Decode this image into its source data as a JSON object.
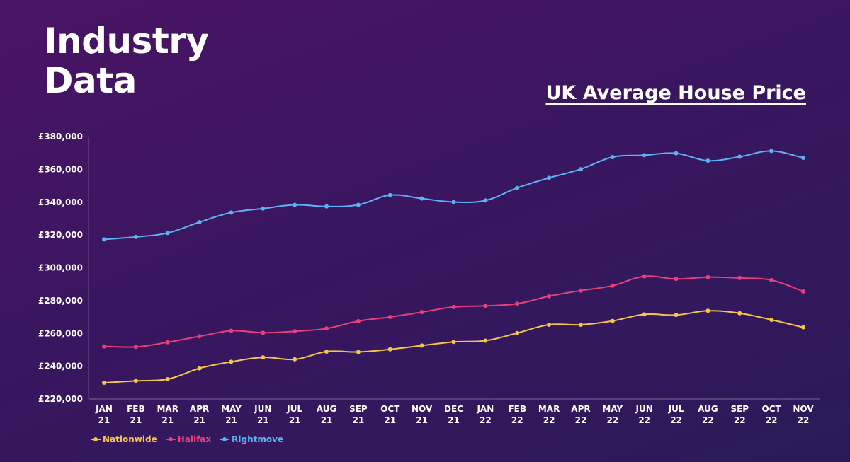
{
  "page": {
    "title_line1": "Industry",
    "title_line2": "Data"
  },
  "colors": {
    "nationwide": "#f7c548",
    "halifax": "#e8407a",
    "rightmove": "#5ab3f5",
    "axis": "#ffffff"
  },
  "chart_data": {
    "type": "line",
    "title": "UK Average House Price",
    "xlabel": "",
    "ylabel": "",
    "ylim": [
      220000,
      380000
    ],
    "yticks": [
      220000,
      240000,
      260000,
      280000,
      300000,
      320000,
      340000,
      360000,
      380000
    ],
    "ytick_labels": [
      "£220,000",
      "£240,000",
      "£260,000",
      "£280,000",
      "£300,000",
      "£320,000",
      "£340,000",
      "£360,000",
      "£380,000"
    ],
    "categories": [
      [
        "JAN",
        "21"
      ],
      [
        "FEB",
        "21"
      ],
      [
        "MAR",
        "21"
      ],
      [
        "APR",
        "21"
      ],
      [
        "MAY",
        "21"
      ],
      [
        "JUN",
        "21"
      ],
      [
        "JUL",
        "21"
      ],
      [
        "AUG",
        "21"
      ],
      [
        "SEP",
        "21"
      ],
      [
        "OCT",
        "21"
      ],
      [
        "NOV",
        "21"
      ],
      [
        "DEC",
        "21"
      ],
      [
        "JAN",
        "22"
      ],
      [
        "FEB",
        "22"
      ],
      [
        "MAR",
        "22"
      ],
      [
        "APR",
        "22"
      ],
      [
        "MAY",
        "22"
      ],
      [
        "JUN",
        "22"
      ],
      [
        "JUL",
        "22"
      ],
      [
        "AUG",
        "22"
      ],
      [
        "SEP",
        "22"
      ],
      [
        "OCT",
        "22"
      ],
      [
        "NOV",
        "22"
      ]
    ],
    "grid": false,
    "legend_position": "bottom-left",
    "series": [
      {
        "name": "Nationwide",
        "color_key": "nationwide",
        "values": [
          229900,
          231100,
          232100,
          238700,
          242700,
          245400,
          244200,
          248900,
          248700,
          250300,
          252600,
          254800,
          255600,
          260200,
          265300,
          265300,
          267600,
          271600,
          271200,
          273800,
          272300,
          268300,
          263700
        ]
      },
      {
        "name": "Halifax",
        "color_key": "halifax",
        "values": [
          252100,
          251800,
          254600,
          258200,
          261600,
          260400,
          261300,
          263000,
          267500,
          270000,
          273000,
          276100,
          276800,
          278100,
          282700,
          286100,
          289100,
          294800,
          293200,
          294300,
          293800,
          292500,
          285600
        ]
      },
      {
        "name": "Rightmove",
        "color_key": "rightmove",
        "values": [
          317300,
          318800,
          321200,
          327800,
          333700,
          336100,
          338400,
          337400,
          338400,
          344300,
          342200,
          340100,
          341000,
          348700,
          354800,
          360100,
          367500,
          368600,
          369800,
          365300,
          367700,
          371200,
          367000
        ]
      }
    ]
  }
}
